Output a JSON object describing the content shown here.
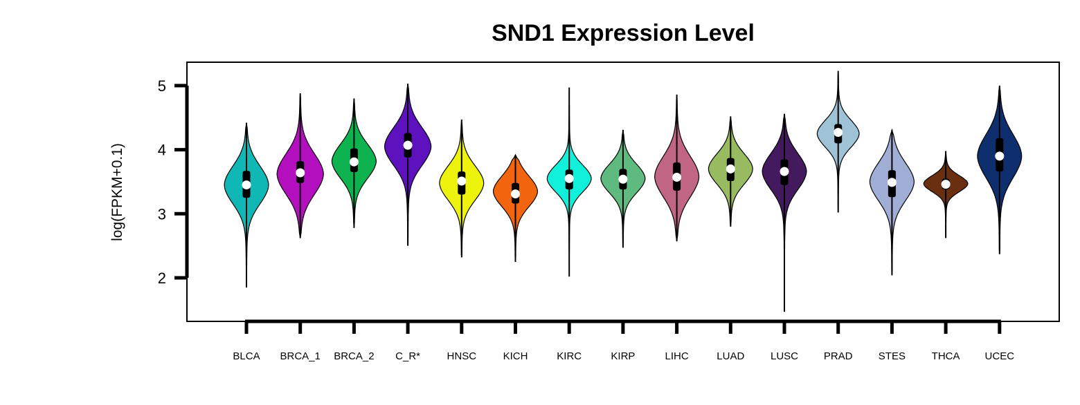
{
  "chart_data": {
    "type": "violin",
    "title": "SND1 Expression Level",
    "xlabel": "",
    "ylabel": "log(FPKM+0.1)",
    "ylim": [
      1.35,
      5.38
    ],
    "y_ticks": [
      "2",
      "3",
      "4",
      "5"
    ],
    "y_tick_values": [
      2,
      3,
      4,
      5
    ],
    "grid": false,
    "categories": [
      "BLCA",
      "BRCA_1",
      "BRCA_2",
      "C_R*",
      "HNSC",
      "KICH",
      "KIRC",
      "KIRP",
      "LIHC",
      "LUAD",
      "LUSC",
      "PRAD",
      "STES",
      "THCA",
      "UCEC"
    ],
    "colors": [
      "#0fb7b5",
      "#b40fbf",
      "#0eb350",
      "#5d12be",
      "#eef30e",
      "#f2650e",
      "#10f0da",
      "#5fba7f",
      "#c06584",
      "#98bb62",
      "#431a5e",
      "#9ec3d6",
      "#a0aed6",
      "#6a2f10",
      "#0e2e6e"
    ],
    "series": [
      {
        "name": "BLCA",
        "min": 1.85,
        "max": 4.42,
        "q1": 3.25,
        "median": 3.45,
        "q3": 3.67,
        "peak": 3.45,
        "width": 0.4,
        "spread": 0.42
      },
      {
        "name": "BRCA_1",
        "min": 2.62,
        "max": 4.88,
        "q1": 3.48,
        "median": 3.64,
        "q3": 3.82,
        "peak": 3.62,
        "width": 0.42,
        "spread": 0.45
      },
      {
        "name": "BRCA_2",
        "min": 2.78,
        "max": 4.8,
        "q1": 3.65,
        "median": 3.81,
        "q3": 4.02,
        "peak": 3.82,
        "width": 0.4,
        "spread": 0.38
      },
      {
        "name": "C_R*",
        "min": 2.5,
        "max": 5.03,
        "q1": 3.88,
        "median": 4.07,
        "q3": 4.26,
        "peak": 4.05,
        "width": 0.42,
        "spread": 0.42
      },
      {
        "name": "HNSC",
        "min": 2.32,
        "max": 4.47,
        "q1": 3.3,
        "median": 3.51,
        "q3": 3.66,
        "peak": 3.48,
        "width": 0.4,
        "spread": 0.38
      },
      {
        "name": "KICH",
        "min": 2.25,
        "max": 3.92,
        "q1": 3.16,
        "median": 3.31,
        "q3": 3.48,
        "peak": 3.35,
        "width": 0.4,
        "spread": 0.34
      },
      {
        "name": "KIRC",
        "min": 2.02,
        "max": 4.97,
        "q1": 3.38,
        "median": 3.55,
        "q3": 3.69,
        "peak": 3.55,
        "width": 0.4,
        "spread": 0.3
      },
      {
        "name": "KIRP",
        "min": 2.47,
        "max": 4.31,
        "q1": 3.38,
        "median": 3.54,
        "q3": 3.7,
        "peak": 3.55,
        "width": 0.4,
        "spread": 0.32
      },
      {
        "name": "LIHC",
        "min": 2.57,
        "max": 4.86,
        "q1": 3.36,
        "median": 3.57,
        "q3": 3.8,
        "peak": 3.58,
        "width": 0.4,
        "spread": 0.45
      },
      {
        "name": "LUAD",
        "min": 2.8,
        "max": 4.52,
        "q1": 3.51,
        "median": 3.7,
        "q3": 3.87,
        "peak": 3.7,
        "width": 0.4,
        "spread": 0.34
      },
      {
        "name": "LUSC",
        "min": 1.47,
        "max": 4.56,
        "q1": 3.45,
        "median": 3.66,
        "q3": 3.85,
        "peak": 3.66,
        "width": 0.4,
        "spread": 0.4
      },
      {
        "name": "PRAD",
        "min": 3.02,
        "max": 5.23,
        "q1": 4.1,
        "median": 4.27,
        "q3": 4.4,
        "peak": 4.25,
        "width": 0.38,
        "spread": 0.3
      },
      {
        "name": "STES",
        "min": 2.04,
        "max": 4.31,
        "q1": 3.26,
        "median": 3.49,
        "q3": 3.68,
        "peak": 3.5,
        "width": 0.4,
        "spread": 0.42
      },
      {
        "name": "THCA",
        "min": 2.62,
        "max": 3.98,
        "q1": 3.38,
        "median": 3.46,
        "q3": 3.55,
        "peak": 3.47,
        "width": 0.4,
        "spread": 0.18
      },
      {
        "name": "UCEC",
        "min": 2.37,
        "max": 5.0,
        "q1": 3.66,
        "median": 3.9,
        "q3": 4.18,
        "peak": 3.9,
        "width": 0.4,
        "spread": 0.48
      }
    ]
  }
}
